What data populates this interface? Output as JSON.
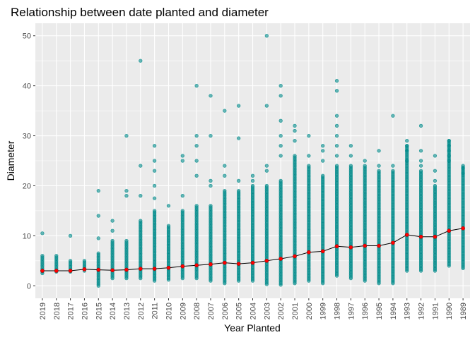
{
  "chart_data": {
    "type": "scatter",
    "title": "Relationship between date planted and diameter",
    "xlabel": "Year Planted",
    "ylabel": "Diameter",
    "ylim": [
      -2.5,
      52.5
    ],
    "yticks": [
      0,
      10,
      20,
      30,
      40,
      50
    ],
    "grid": true,
    "legend": "none",
    "colors": {
      "panel": "#EBEBEB",
      "grid": "#FFFFFF",
      "point": "#008B8B",
      "mean_point": "#FF0000",
      "mean_line": "#000000",
      "axis_text": "#4D4D4D",
      "text": "#000000"
    },
    "categories": [
      "2019",
      "2018",
      "2017",
      "2016",
      "2015",
      "2014",
      "2013",
      "2012",
      "2011",
      "2010",
      "2009",
      "2008",
      "2007",
      "2006",
      "2005",
      "2004",
      "2003",
      "2002",
      "2001",
      "2000",
      "1999",
      "1998",
      "1997",
      "1996",
      "1995",
      "1994",
      "1993",
      "1992",
      "1991",
      "1990",
      "1989"
    ],
    "mean_diameter": [
      3.0,
      3.0,
      3.0,
      3.3,
      3.2,
      3.1,
      3.2,
      3.4,
      3.4,
      3.6,
      3.9,
      4.1,
      4.3,
      4.6,
      4.4,
      4.6,
      5.0,
      5.4,
      5.9,
      6.7,
      6.9,
      7.9,
      7.7,
      8.0,
      8.0,
      8.6,
      10.2,
      9.8,
      9.8,
      11.0,
      11.5
    ],
    "range_low": [
      2.5,
      2.8,
      2.8,
      3.0,
      0.0,
      1.5,
      1.5,
      1.5,
      1.0,
      1.2,
      1.5,
      1.5,
      1.0,
      0.5,
      1.0,
      1.0,
      0.3,
      0.2,
      0.5,
      1.0,
      0.5,
      2.0,
      1.5,
      1.0,
      0.5,
      0.5,
      3.0,
      3.0,
      3.0,
      4.0,
      3.5
    ],
    "range_high": [
      6,
      6,
      5,
      5,
      6.5,
      9,
      9,
      13,
      15,
      12,
      15,
      16,
      16,
      19,
      19,
      20,
      20,
      21,
      26,
      24,
      22,
      24,
      24,
      24,
      23,
      23,
      28,
      23,
      20,
      29,
      24
    ],
    "outliers": [
      [
        0,
        10.5
      ],
      [
        2,
        10.0
      ],
      [
        4,
        19.0
      ],
      [
        4,
        14.0
      ],
      [
        4,
        9.5
      ],
      [
        5,
        13.0
      ],
      [
        5,
        11.0
      ],
      [
        6,
        30.0
      ],
      [
        6,
        19.0
      ],
      [
        6,
        18.0
      ],
      [
        7,
        45.0
      ],
      [
        7,
        24.0
      ],
      [
        7,
        18.0
      ],
      [
        8,
        28.0
      ],
      [
        8,
        25.0
      ],
      [
        8,
        23.0
      ],
      [
        8,
        20.0
      ],
      [
        8,
        17.5
      ],
      [
        9,
        16.0
      ],
      [
        10,
        26.0
      ],
      [
        10,
        25.0
      ],
      [
        10,
        18.0
      ],
      [
        11,
        40.0
      ],
      [
        11,
        30.0
      ],
      [
        11,
        28.0
      ],
      [
        11,
        25.0
      ],
      [
        11,
        22.0
      ],
      [
        12,
        38.0
      ],
      [
        12,
        30.0
      ],
      [
        12,
        21.0
      ],
      [
        12,
        20.0
      ],
      [
        13,
        35.0
      ],
      [
        13,
        24.0
      ],
      [
        13,
        22.0
      ],
      [
        14,
        36.0
      ],
      [
        14,
        29.5
      ],
      [
        14,
        21.0
      ],
      [
        15,
        21.0
      ],
      [
        15,
        22.0
      ],
      [
        16,
        50.0
      ],
      [
        16,
        36.0
      ],
      [
        16,
        24.0
      ],
      [
        16,
        23.0
      ],
      [
        17,
        40.0
      ],
      [
        17,
        38.0
      ],
      [
        17,
        33.0
      ],
      [
        17,
        30.0
      ],
      [
        17,
        28.0
      ],
      [
        17,
        26.0
      ],
      [
        18,
        32.0
      ],
      [
        18,
        31.0
      ],
      [
        18,
        29.0
      ],
      [
        19,
        30.0
      ],
      [
        19,
        26.0
      ],
      [
        20,
        28.0
      ],
      [
        20,
        27.0
      ],
      [
        20,
        25.0
      ],
      [
        21,
        41.0
      ],
      [
        21,
        39.0
      ],
      [
        21,
        34.0
      ],
      [
        21,
        32.0
      ],
      [
        21,
        30.0
      ],
      [
        21,
        28.0
      ],
      [
        21,
        26.0
      ],
      [
        22,
        28.0
      ],
      [
        22,
        26.0
      ],
      [
        23,
        25.0
      ],
      [
        24,
        27.0
      ],
      [
        24,
        24.0
      ],
      [
        25,
        34.0
      ],
      [
        25,
        24.0
      ],
      [
        26,
        29.0
      ],
      [
        26,
        28.0
      ],
      [
        26,
        27.0
      ],
      [
        26,
        25.0
      ],
      [
        27,
        32.0
      ],
      [
        27,
        27.0
      ],
      [
        27,
        25.0
      ],
      [
        27,
        24.0
      ],
      [
        28,
        26.0
      ],
      [
        28,
        23.0
      ],
      [
        28,
        21.0
      ],
      [
        29,
        29.0
      ],
      [
        29,
        28.0
      ],
      [
        29,
        27.0
      ],
      [
        29,
        26.0
      ],
      [
        29,
        25.0
      ],
      [
        30,
        23.5
      ],
      [
        30,
        22.5
      ]
    ]
  }
}
